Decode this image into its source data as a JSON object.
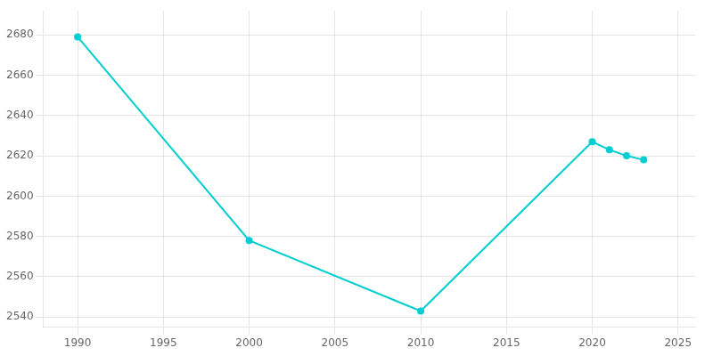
{
  "chart_data": {
    "type": "line",
    "x": [
      1990,
      2000,
      2010,
      2020,
      2021,
      2022,
      2023
    ],
    "values": [
      2679,
      2578,
      2543,
      2627,
      2623,
      2620,
      2618
    ],
    "color": "#00CED1",
    "marker": "circle",
    "xlim": [
      1988,
      2026
    ],
    "xticks": [
      1990,
      1995,
      2000,
      2005,
      2010,
      2015,
      2020,
      2025
    ],
    "ylim": [
      2535,
      2692
    ],
    "yticks": [
      2540,
      2560,
      2580,
      2600,
      2620,
      2640,
      2660,
      2680
    ],
    "grid": true
  }
}
